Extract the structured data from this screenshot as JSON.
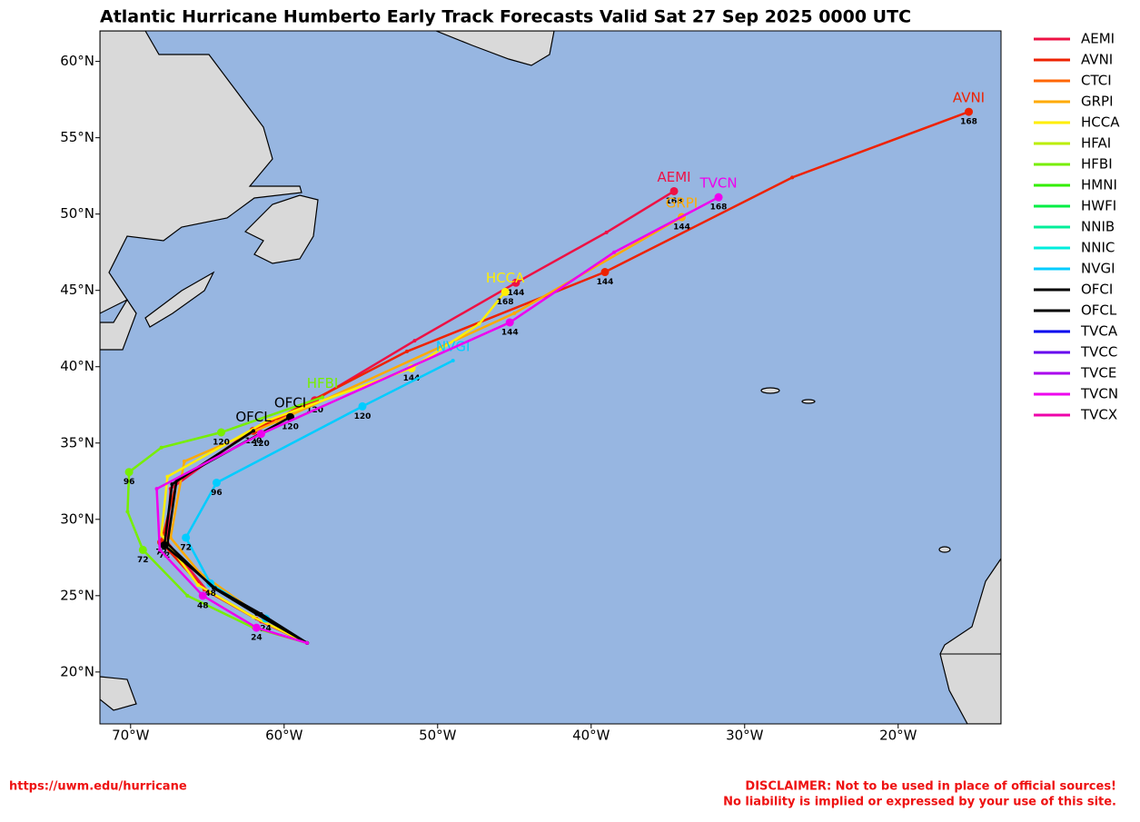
{
  "map": {
    "title": "Atlantic Hurricane Humberto Early Track Forecasts Valid Sat 27 Sep 2025 0000 UTC",
    "xlim": [
      -72,
      -13.3
    ],
    "ylim": [
      16.6,
      62
    ],
    "lon_ticks": [
      {
        "value": -70,
        "label": "70°W"
      },
      {
        "value": -60,
        "label": "60°W"
      },
      {
        "value": -50,
        "label": "50°W"
      },
      {
        "value": -40,
        "label": "40°W"
      },
      {
        "value": -30,
        "label": "30°W"
      },
      {
        "value": -20,
        "label": "20°W"
      }
    ],
    "lat_ticks": [
      {
        "value": 60,
        "label": "60°N"
      },
      {
        "value": 55,
        "label": "55°N"
      },
      {
        "value": 50,
        "label": "50°N"
      },
      {
        "value": 45,
        "label": "45°N"
      },
      {
        "value": 40,
        "label": "40°N"
      },
      {
        "value": 35,
        "label": "35°N"
      },
      {
        "value": 30,
        "label": "30°N"
      },
      {
        "value": 25,
        "label": "25°N"
      },
      {
        "value": 20,
        "label": "20°N"
      }
    ],
    "models": [
      {
        "name": "AEMI",
        "color": "#ee1144",
        "track": [
          {
            "lon": -58.5,
            "lat": 21.9,
            "hour": null
          },
          {
            "lon": -61.5,
            "lat": 23.3,
            "hour": null
          },
          {
            "lon": -65.0,
            "lat": 25.3,
            "hour": null
          },
          {
            "lon": -67.6,
            "lat": 28.5,
            "hour": null
          },
          {
            "lon": -67.4,
            "lat": 32.0,
            "hour": null
          },
          {
            "lon": -63.0,
            "lat": 35.2,
            "hour": null
          },
          {
            "lon": -58.0,
            "lat": 37.8,
            "hour": 120
          },
          {
            "lon": -51.5,
            "lat": 41.7,
            "hour": null
          },
          {
            "lon": -44.9,
            "lat": 45.5,
            "hour": 144
          },
          {
            "lon": -39.0,
            "lat": 48.8,
            "hour": null
          },
          {
            "lon": -34.6,
            "lat": 51.5,
            "hour": 168
          }
        ]
      },
      {
        "name": "AVNI",
        "color": "#ee2200",
        "track": [
          {
            "lon": -58.5,
            "lat": 21.9,
            "hour": null
          },
          {
            "lon": -61.8,
            "lat": 23.5,
            "hour": null
          },
          {
            "lon": -65.2,
            "lat": 25.4,
            "hour": null
          },
          {
            "lon": -68.0,
            "lat": 28.5,
            "hour": 72
          },
          {
            "lon": -67.0,
            "lat": 32.5,
            "hour": null
          },
          {
            "lon": -62.0,
            "lat": 35.8,
            "hour": 120
          },
          {
            "lon": -52.0,
            "lat": 41.0,
            "hour": null
          },
          {
            "lon": -39.1,
            "lat": 46.2,
            "hour": 144
          },
          {
            "lon": -26.9,
            "lat": 52.4,
            "hour": null
          },
          {
            "lon": -15.4,
            "lat": 56.7,
            "hour": 168
          }
        ]
      },
      {
        "name": "CTCI",
        "color": "#ff6600",
        "track": []
      },
      {
        "name": "GRPI",
        "color": "#ffaa00",
        "track": [
          {
            "lon": -58.5,
            "lat": 21.9,
            "hour": null
          },
          {
            "lon": -62.0,
            "lat": 24.0,
            "hour": null
          },
          {
            "lon": -65.5,
            "lat": 26.5,
            "hour": null
          },
          {
            "lon": -67.4,
            "lat": 28.8,
            "hour": null
          },
          {
            "lon": -66.5,
            "lat": 33.8,
            "hour": null
          },
          {
            "lon": -60.5,
            "lat": 36.4,
            "hour": null
          },
          {
            "lon": -45.0,
            "lat": 43.5,
            "hour": null
          },
          {
            "lon": -34.1,
            "lat": 49.8,
            "hour": 144
          }
        ]
      },
      {
        "name": "HCCA",
        "color": "#ffee00",
        "track": [
          {
            "lon": -58.5,
            "lat": 21.9,
            "hour": null
          },
          {
            "lon": -62.0,
            "lat": 23.6,
            "hour": null
          },
          {
            "lon": -65.6,
            "lat": 25.7,
            "hour": null
          },
          {
            "lon": -68.0,
            "lat": 29.0,
            "hour": null
          },
          {
            "lon": -67.6,
            "lat": 32.8,
            "hour": null
          },
          {
            "lon": -61.0,
            "lat": 36.5,
            "hour": null
          },
          {
            "lon": -51.7,
            "lat": 39.9,
            "hour": 144
          },
          {
            "lon": -47.3,
            "lat": 42.8,
            "hour": null
          },
          {
            "lon": -45.6,
            "lat": 44.9,
            "hour": 168
          }
        ]
      },
      {
        "name": "HFAI",
        "color": "#bbee00",
        "track": []
      },
      {
        "name": "HFBI",
        "color": "#77ee00",
        "track": [
          {
            "lon": -58.5,
            "lat": 21.9,
            "hour": null
          },
          {
            "lon": -62.0,
            "lat": 22.9,
            "hour": null
          },
          {
            "lon": -66.3,
            "lat": 25.0,
            "hour": null
          },
          {
            "lon": -69.2,
            "lat": 28.0,
            "hour": 72
          },
          {
            "lon": -70.2,
            "lat": 30.5,
            "hour": null
          },
          {
            "lon": -70.1,
            "lat": 33.1,
            "hour": 96
          },
          {
            "lon": -68.0,
            "lat": 34.7,
            "hour": null
          },
          {
            "lon": -64.1,
            "lat": 35.7,
            "hour": 120
          },
          {
            "lon": -57.5,
            "lat": 38.0,
            "hour": null
          }
        ]
      },
      {
        "name": "HMNI",
        "color": "#33ee00",
        "track": []
      },
      {
        "name": "HWFI",
        "color": "#00ee44",
        "track": []
      },
      {
        "name": "NNIB",
        "color": "#00ee99",
        "track": []
      },
      {
        "name": "NNIC",
        "color": "#00eedd",
        "track": []
      },
      {
        "name": "NVGI",
        "color": "#00ccff",
        "track": [
          {
            "lon": -58.5,
            "lat": 21.9,
            "hour": null
          },
          {
            "lon": -61.2,
            "lat": 23.5,
            "hour": 24
          },
          {
            "lon": -64.8,
            "lat": 25.8,
            "hour": 48
          },
          {
            "lon": -66.4,
            "lat": 28.8,
            "hour": 72
          },
          {
            "lon": -64.4,
            "lat": 32.4,
            "hour": 96
          },
          {
            "lon": -54.9,
            "lat": 37.4,
            "hour": 120
          },
          {
            "lon": -49.0,
            "lat": 40.4,
            "hour": null
          }
        ]
      },
      {
        "name": "OFCI",
        "color": "#000000",
        "track": [
          {
            "lon": -58.5,
            "lat": 21.9,
            "hour": null
          },
          {
            "lon": -61.8,
            "lat": 23.8,
            "hour": null
          },
          {
            "lon": -64.6,
            "lat": 25.5,
            "hour": null
          },
          {
            "lon": -67.6,
            "lat": 28.4,
            "hour": null
          },
          {
            "lon": -67.0,
            "lat": 32.6,
            "hour": null
          },
          {
            "lon": -59.6,
            "lat": 36.7,
            "hour": 120
          }
        ]
      },
      {
        "name": "OFCL",
        "color": "#000000",
        "track": [
          {
            "lon": -58.5,
            "lat": 21.9,
            "hour": null
          },
          {
            "lon": -61.5,
            "lat": 23.8,
            "hour": null
          },
          {
            "lon": -64.5,
            "lat": 25.5,
            "hour": null
          },
          {
            "lon": -67.8,
            "lat": 28.3,
            "hour": 72
          },
          {
            "lon": -67.3,
            "lat": 32.3,
            "hour": null
          },
          {
            "lon": -62.0,
            "lat": 35.8,
            "hour": null
          }
        ]
      },
      {
        "name": "TVCA",
        "color": "#0000ee",
        "track": []
      },
      {
        "name": "TVCC",
        "color": "#6600ee",
        "track": []
      },
      {
        "name": "TVCE",
        "color": "#aa00ee",
        "track": []
      },
      {
        "name": "TVCN",
        "color": "#ee00ee",
        "track": [
          {
            "lon": -58.5,
            "lat": 21.9,
            "hour": null
          },
          {
            "lon": -61.8,
            "lat": 22.9,
            "hour": 24
          },
          {
            "lon": -65.3,
            "lat": 25.0,
            "hour": 48
          },
          {
            "lon": -68.1,
            "lat": 28.0,
            "hour": null
          },
          {
            "lon": -68.3,
            "lat": 32.0,
            "hour": null
          },
          {
            "lon": -61.5,
            "lat": 35.6,
            "hour": 120
          },
          {
            "lon": -45.3,
            "lat": 42.9,
            "hour": 144
          },
          {
            "lon": -38.5,
            "lat": 47.5,
            "hour": null
          },
          {
            "lon": -31.7,
            "lat": 51.1,
            "hour": 168
          }
        ]
      },
      {
        "name": "TVCX",
        "color": "#ee00aa",
        "track": []
      }
    ],
    "footer": {
      "url": "https://uwm.edu/hurricane",
      "disclaimer": [
        "DISCLAIMER: Not to be used in place of official sources!",
        "No liability is implied or expressed by your use of this site."
      ]
    }
  }
}
